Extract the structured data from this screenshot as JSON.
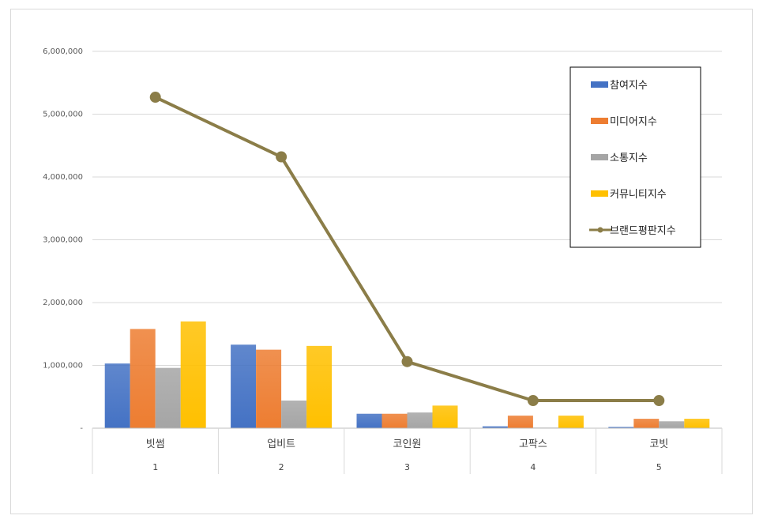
{
  "chart_data": {
    "type": "bar",
    "title": "",
    "categories": [
      "빗썸",
      "업비트",
      "코인원",
      "고팍스",
      "코빗"
    ],
    "ranks": [
      "1",
      "2",
      "3",
      "4",
      "5"
    ],
    "y_tick_labels": [
      "-",
      "1,000,000",
      "2,000,000",
      "3,000,000",
      "4,000,000",
      "5,000,000",
      "6,000,000"
    ],
    "ylim": [
      0,
      6000000
    ],
    "grid": true,
    "legend_position": "right",
    "series": [
      {
        "name": "참여지수",
        "type": "bar",
        "color": "#4472C4",
        "values": [
          1030000,
          1330000,
          230000,
          30000,
          20000
        ]
      },
      {
        "name": "미디어지수",
        "type": "bar",
        "color": "#ED7D31",
        "values": [
          1580000,
          1250000,
          230000,
          200000,
          150000
        ]
      },
      {
        "name": "소통지수",
        "type": "bar",
        "color": "#A5A5A5",
        "values": [
          960000,
          440000,
          250000,
          10000,
          110000
        ]
      },
      {
        "name": "커뮤니티지수",
        "type": "bar",
        "color": "#FFC000",
        "values": [
          1700000,
          1310000,
          360000,
          200000,
          150000
        ]
      },
      {
        "name": "브랜드평판지수",
        "type": "line",
        "color": "#8B7D48",
        "values": [
          5270000,
          4320000,
          1060000,
          440000,
          440000
        ]
      }
    ]
  }
}
